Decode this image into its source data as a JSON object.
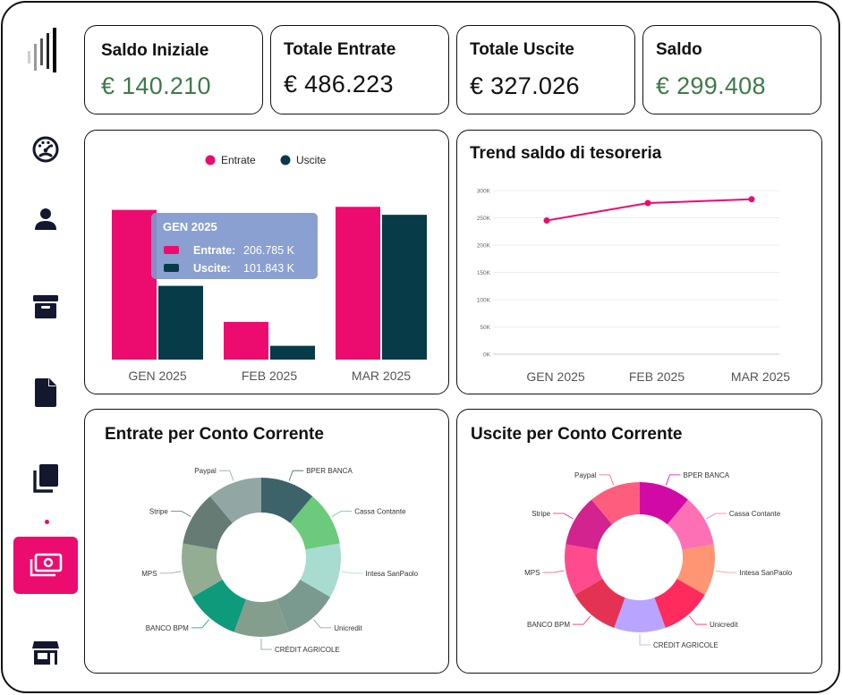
{
  "kpis": [
    {
      "title": "Saldo Iniziale",
      "value": "€ 140.210",
      "color": "#3f7a4a"
    },
    {
      "title": "Totale Entrate",
      "value": "€ 486.223",
      "color": "#111111"
    },
    {
      "title": "Totale Uscite",
      "value": "€ 327.026",
      "color": "#111111"
    },
    {
      "title": "Saldo",
      "value": "€ 299.408",
      "color": "#3f7a4a"
    }
  ],
  "sidebar": {
    "items": [
      {
        "name": "dashboard-gauge-icon",
        "active": false
      },
      {
        "name": "user-icon",
        "active": false
      },
      {
        "name": "archive-box-icon",
        "active": false
      },
      {
        "name": "document-icon",
        "active": false
      },
      {
        "name": "copy-pages-icon",
        "active": false
      },
      {
        "name": "money-icon",
        "active": true
      },
      {
        "name": "store-icon",
        "active": false
      }
    ],
    "active_color": "#ec0b6f"
  },
  "bar_chart": {
    "tooltip": {
      "title": "GEN 2025",
      "lines": [
        {
          "label": "Entrate:",
          "value": "206.785 K",
          "color": "#ec0b6f"
        },
        {
          "label": "Uscite:",
          "value": "101.843 K",
          "color": "#063b47"
        }
      ]
    }
  },
  "trend_chart": {
    "title": "Trend saldo di tesoreria"
  },
  "donut_in": {
    "title": "Entrate per Conto Corrente"
  },
  "donut_out": {
    "title": "Uscite per Conto Corrente"
  },
  "chart_data": [
    {
      "type": "bar",
      "categories": [
        "GEN 2025",
        "FEB 2025",
        "MAR 2025"
      ],
      "series": [
        {
          "name": "Entrate",
          "values": [
            206.785,
            52,
            211
          ],
          "color": "#ec0b6f"
        },
        {
          "name": "Uscite",
          "values": [
            101.843,
            19,
            200
          ],
          "color": "#063b47"
        }
      ],
      "ylim": [
        0,
        215
      ],
      "legend": "top-center"
    },
    {
      "type": "line",
      "categories": [
        "GEN 2025",
        "FEB 2025",
        "MAR 2025"
      ],
      "series": [
        {
          "values": [
            245,
            277,
            284
          ],
          "color": "#ec0b6f"
        }
      ],
      "yticks": [
        "0K",
        "50K",
        "100K",
        "150K",
        "200K",
        "250K",
        "300K"
      ],
      "ylim": [
        0,
        300
      ],
      "grid": true
    },
    {
      "type": "pie",
      "slices": [
        {
          "label": "BPER BANCA",
          "value": 1,
          "color": "#3d636a"
        },
        {
          "label": "Cassa Contante",
          "value": 1,
          "color": "#6bca7b"
        },
        {
          "label": "Intesa SanPaolo",
          "value": 1,
          "color": "#a8dcd0"
        },
        {
          "label": "Unicredit",
          "value": 1,
          "color": "#7a9a90"
        },
        {
          "label": "CRÉDIT AGRICOLE",
          "value": 1,
          "color": "#849e8e"
        },
        {
          "label": "BANCO BPM",
          "value": 1,
          "color": "#0d9b7c"
        },
        {
          "label": "MPS",
          "value": 1,
          "color": "#93ad92"
        },
        {
          "label": "Stripe",
          "value": 1,
          "color": "#667b74"
        },
        {
          "label": "Paypal",
          "value": 1,
          "color": "#92a6a4"
        }
      ]
    },
    {
      "type": "pie",
      "slices": [
        {
          "label": "BPER BANCA",
          "value": 1,
          "color": "#d10aa6"
        },
        {
          "label": "Cassa Contante",
          "value": 1,
          "color": "#fd70b6"
        },
        {
          "label": "Intesa SanPaolo",
          "value": 1,
          "color": "#ff9572"
        },
        {
          "label": "Unicredit",
          "value": 1,
          "color": "#ff2b5c"
        },
        {
          "label": "CRÉDIT AGRICOLE",
          "value": 1,
          "color": "#b9a5ff"
        },
        {
          "label": "BANCO BPM",
          "value": 1,
          "color": "#e43352"
        },
        {
          "label": "MPS",
          "value": 1,
          "color": "#ff4b8e"
        },
        {
          "label": "Stripe",
          "value": 1,
          "color": "#d2238f"
        },
        {
          "label": "Paypal",
          "value": 1,
          "color": "#ff5d7d"
        }
      ]
    }
  ]
}
